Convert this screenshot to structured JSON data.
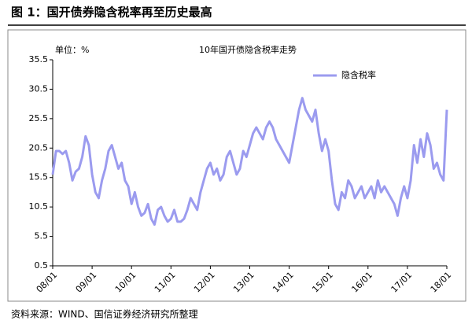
{
  "header": {
    "title": "图 1：国开债券隐含税率再至历史最高"
  },
  "chart_data": {
    "type": "line",
    "title": "10年国开债隐含税率走势",
    "unit_label": "单位：%",
    "categories": [
      "08/01",
      null,
      null,
      null,
      null,
      null,
      null,
      null,
      null,
      null,
      null,
      null,
      "09/01",
      null,
      null,
      null,
      null,
      null,
      null,
      null,
      null,
      null,
      null,
      null,
      "10/01",
      null,
      null,
      null,
      null,
      null,
      null,
      null,
      null,
      null,
      null,
      null,
      "11/01",
      null,
      null,
      null,
      null,
      null,
      null,
      null,
      null,
      null,
      null,
      null,
      "12/01",
      null,
      null,
      null,
      null,
      null,
      null,
      null,
      null,
      null,
      null,
      null,
      "13/01",
      null,
      null,
      null,
      null,
      null,
      null,
      null,
      null,
      null,
      null,
      null,
      "14/01",
      null,
      null,
      null,
      null,
      null,
      null,
      null,
      null,
      null,
      null,
      null,
      "15/01",
      null,
      null,
      null,
      null,
      null,
      null,
      null,
      null,
      null,
      null,
      null,
      "16/01",
      null,
      null,
      null,
      null,
      null,
      null,
      null,
      null,
      null,
      null,
      null,
      "17/01",
      null,
      null,
      null,
      null,
      null,
      null,
      null,
      null,
      null,
      null,
      null,
      "18/01"
    ],
    "series": [
      {
        "name": "隐含税率",
        "color": "#9b9bef",
        "values": [
          16,
          20,
          20,
          19.5,
          20,
          18,
          15,
          16.5,
          17,
          19,
          22.5,
          21,
          16,
          13,
          12,
          15,
          17,
          20,
          21,
          19,
          17,
          18,
          15,
          14,
          11,
          13,
          10.5,
          9,
          9.5,
          11,
          8.5,
          7.5,
          10,
          10.5,
          9,
          8,
          8.5,
          10,
          8,
          8,
          8.5,
          10,
          12,
          11,
          10,
          13,
          15,
          17,
          18,
          16,
          17,
          15,
          16,
          19,
          20,
          18,
          16,
          17,
          20,
          19,
          21,
          23,
          24,
          23,
          22,
          24,
          25,
          24,
          22,
          21,
          20,
          19,
          18,
          21,
          24,
          27,
          29,
          27,
          26,
          25,
          27,
          23,
          20,
          22,
          20,
          15,
          11,
          10,
          13,
          12,
          15,
          14,
          12,
          13,
          14,
          12,
          13,
          14,
          12,
          15,
          13,
          14,
          13,
          12,
          11,
          9,
          12,
          14,
          12,
          15,
          21,
          18,
          22,
          19,
          23,
          21,
          17,
          18,
          16,
          15,
          27
        ]
      }
    ],
    "ylim": [
      0.5,
      35.5
    ],
    "yticks": [
      0.5,
      5.5,
      10.5,
      15.5,
      20.5,
      25.5,
      30.5,
      35.5
    ],
    "grid": false,
    "legend": "top-right"
  },
  "footer": {
    "source": "资料来源：WIND、国信证券经济研究所整理"
  }
}
